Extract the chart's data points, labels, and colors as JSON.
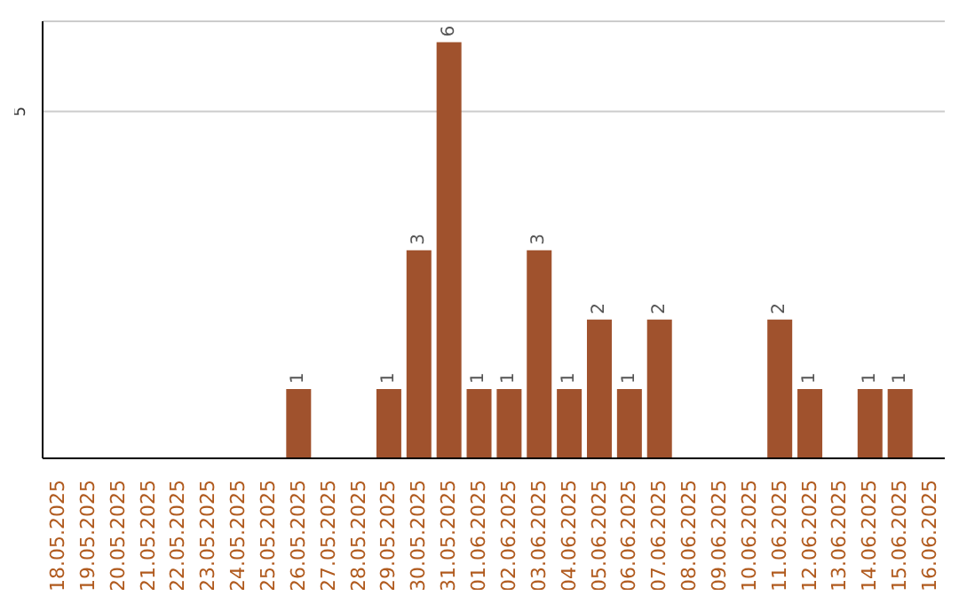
{
  "chart_data": {
    "type": "bar",
    "categories": [
      "18.05.2025",
      "19.05.2025",
      "20.05.2025",
      "21.05.2025",
      "22.05.2025",
      "23.05.2025",
      "24.05.2025",
      "25.05.2025",
      "26.05.2025",
      "27.05.2025",
      "28.05.2025",
      "29.05.2025",
      "30.05.2025",
      "31.05.2025",
      "01.06.2025",
      "02.06.2025",
      "03.06.2025",
      "04.06.2025",
      "05.06.2025",
      "06.06.2025",
      "07.06.2025",
      "08.06.2025",
      "09.06.2025",
      "10.06.2025",
      "11.06.2025",
      "12.06.2025",
      "13.06.2025",
      "14.06.2025",
      "15.06.2025",
      "16.06.2025"
    ],
    "values": [
      0,
      0,
      0,
      0,
      0,
      0,
      0,
      0,
      1,
      0,
      0,
      1,
      3,
      6,
      1,
      1,
      3,
      1,
      2,
      1,
      2,
      0,
      0,
      0,
      2,
      1,
      0,
      1,
      1,
      0
    ],
    "value_labels": [
      null,
      null,
      null,
      null,
      null,
      null,
      null,
      null,
      "1",
      null,
      null,
      "1",
      "3",
      "6",
      "1",
      "1",
      "3",
      "1",
      "2",
      "1",
      "2",
      null,
      null,
      null,
      "2",
      "1",
      null,
      "1",
      "1",
      null
    ],
    "color": "#a0522d",
    "ylim": [
      0,
      6.3
    ],
    "yticks": [
      5
    ],
    "grid": "y"
  }
}
